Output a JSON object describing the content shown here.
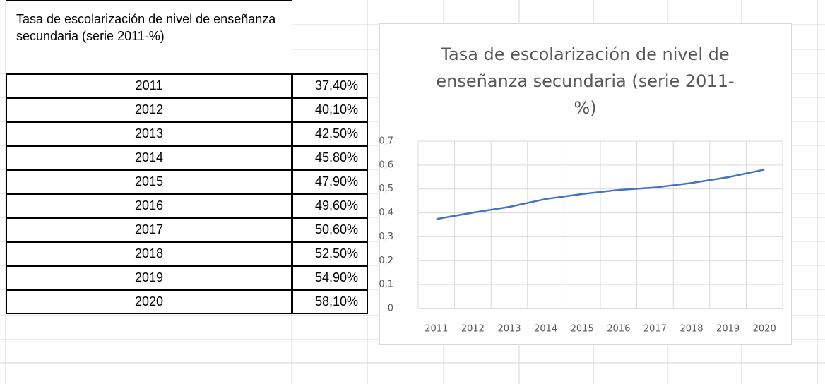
{
  "table": {
    "header": "Tasa de escolarización de nivel de enseñanza secundaria (serie 2011-%)",
    "rows": [
      [
        "2011",
        "37,40%"
      ],
      [
        "2012",
        "40,10%"
      ],
      [
        "2013",
        "42,50%"
      ],
      [
        "2014",
        "45,80%"
      ],
      [
        "2015",
        "47,90%"
      ],
      [
        "2016",
        "49,60%"
      ],
      [
        "2017",
        "50,60%"
      ],
      [
        "2018",
        "52,50%"
      ],
      [
        "2019",
        "54,90%"
      ],
      [
        "2020",
        "58,10%"
      ]
    ]
  },
  "chart_data": {
    "type": "line",
    "title": "Tasa de escolarización de nivel de enseñanza secundaria (serie 2011-%)",
    "categories": [
      "2011",
      "2012",
      "2013",
      "2014",
      "2015",
      "2016",
      "2017",
      "2018",
      "2019",
      "2020"
    ],
    "series": [
      {
        "color": "#4472c4",
        "values": [
          0.374,
          0.401,
          0.425,
          0.458,
          0.479,
          0.496,
          0.506,
          0.525,
          0.549,
          0.581
        ]
      }
    ],
    "ylim": [
      0,
      0.7
    ],
    "yticks": [
      0,
      {
        "value": 0.1,
        "label": "0,1"
      },
      {
        "value": 0.2,
        "label": "0,2"
      },
      {
        "value": 0.3,
        "label": "0,3"
      },
      {
        "value": 0.4,
        "label": "0,4"
      },
      {
        "value": 0.5,
        "label": "0,5"
      },
      {
        "value": 0.6,
        "label": "0,6"
      },
      {
        "value": 0.7,
        "label": "0,7"
      }
    ],
    "grid": true
  }
}
